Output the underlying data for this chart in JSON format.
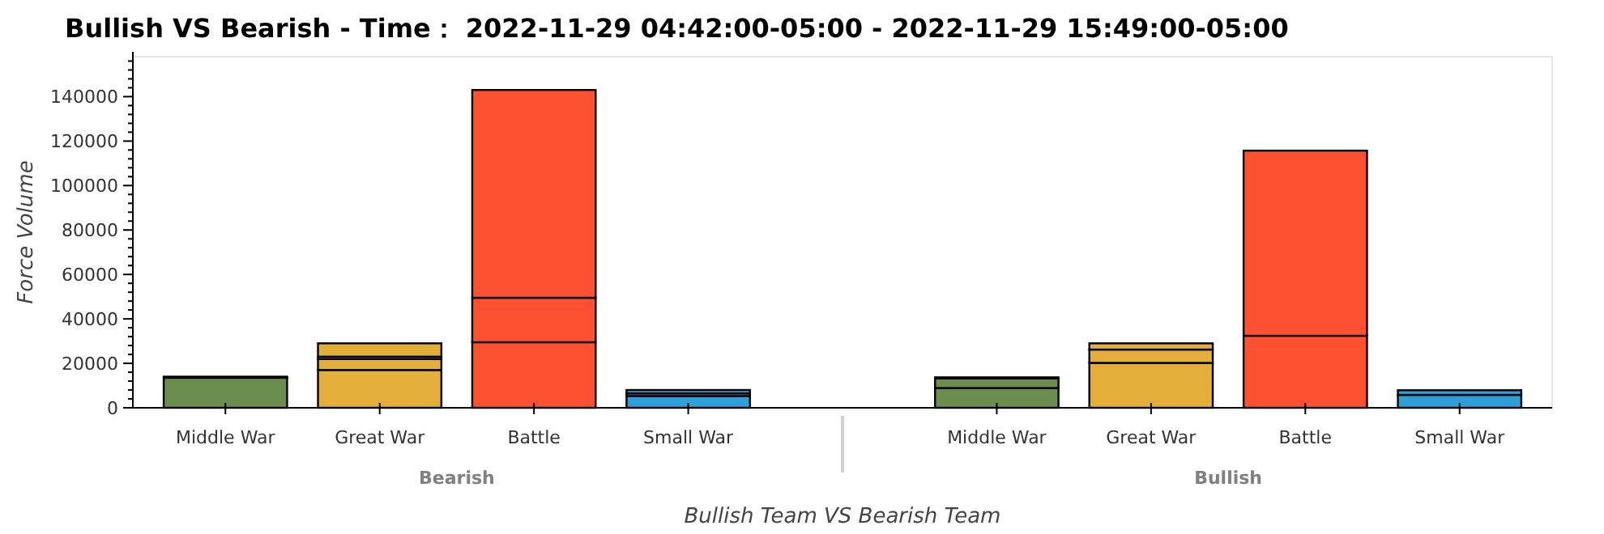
{
  "chart_data": {
    "type": "bar",
    "stacked": true,
    "title": "Bullish VS Bearish - Time：  2022-11-29 04:42:00-05:00 - 2022-11-29 15:49:00-05:00",
    "xlabel": "Bullish Team VS Bearish Team",
    "ylabel": "Force Volume",
    "categories": [
      "Middle War",
      "Great War",
      "Battle",
      "Small War",
      null,
      "Middle War",
      "Great War",
      "Battle",
      "Small War"
    ],
    "annotations": [
      "Bearish",
      "Bullish"
    ],
    "series": [
      {
        "colors": [
          "#6b8e4e",
          "#e3ae3a",
          "#fe5131",
          "#2e9fd8",
          null,
          "#6b8e4e",
          "#e3ae3a",
          "#fe5131",
          "#2e9fd8"
        ],
        "values": [
          13500,
          17000,
          29500,
          5300,
          null,
          8900,
          20200,
          32400,
          5800
        ]
      },
      {
        "colors": [
          "#6b8e4e",
          "#e3ae3a",
          "#fe5131",
          "#2e9fd8",
          null,
          "#6b8e4e",
          "#e3ae3a",
          "#fe5131",
          "#2e9fd8"
        ],
        "values": [
          500,
          5000,
          20000,
          1200,
          null,
          4300,
          6000,
          83300,
          2100
        ]
      },
      {
        "colors": [
          null,
          "#e3ae3a",
          "#fe5131",
          "#2e9fd8",
          null,
          "#6b8e4e",
          "#e3ae3a",
          null,
          null
        ],
        "values": [
          null,
          1000,
          93500,
          1500,
          null,
          500,
          2800,
          null,
          null
        ]
      },
      {
        "colors": [
          null,
          "#e3ae3a",
          null,
          null,
          null,
          null,
          null,
          null,
          null
        ],
        "values": [
          null,
          6000,
          null,
          null,
          null,
          null,
          null,
          null,
          null
        ]
      }
    ],
    "ylim": [
      0,
      158000
    ],
    "yticks": [
      0,
      20000,
      40000,
      60000,
      80000,
      100000,
      120000,
      140000
    ]
  }
}
